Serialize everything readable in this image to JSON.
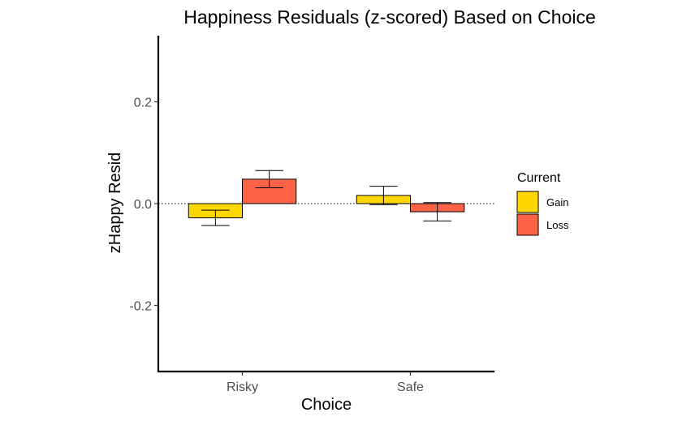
{
  "chart_data": {
    "type": "bar",
    "title": "Happiness Residuals (z-scored) Based on Choice",
    "xlabel": "Choice",
    "ylabel": "zHappy Resid",
    "categories": [
      "Risky",
      "Safe"
    ],
    "ylim": [
      -0.33,
      0.33
    ],
    "yticks": [
      -0.2,
      0.0,
      0.2
    ],
    "ytick_labels": [
      "-0.2",
      "0.0",
      "0.2"
    ],
    "reference_line": 0,
    "grid": false,
    "legend": {
      "title": "Current",
      "position": "right"
    },
    "series": [
      {
        "name": "Gain",
        "color": "#FFD700",
        "values": [
          -0.028,
          0.016
        ],
        "error": [
          0.015,
          0.018
        ]
      },
      {
        "name": "Loss",
        "color": "#FF6347",
        "values": [
          0.048,
          -0.016
        ],
        "error": [
          0.017,
          0.018
        ]
      }
    ]
  }
}
